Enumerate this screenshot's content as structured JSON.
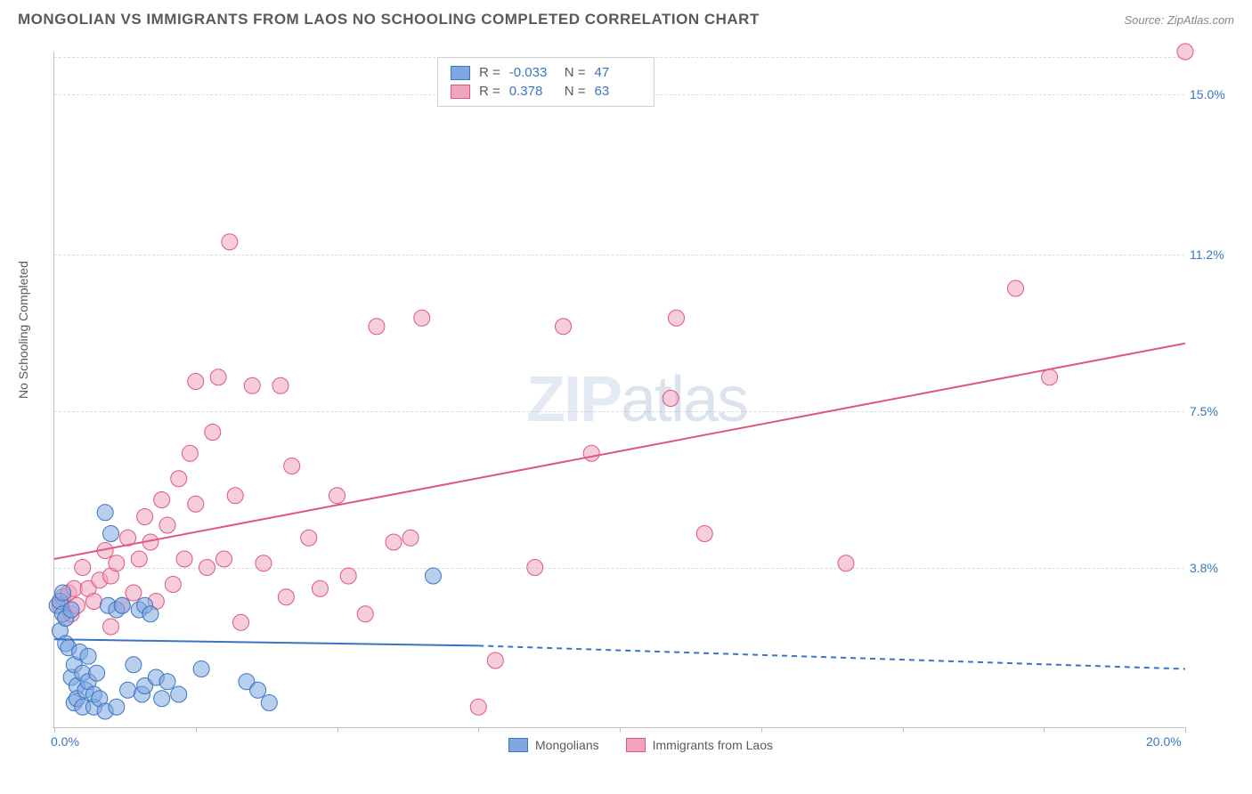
{
  "header": {
    "title": "MONGOLIAN VS IMMIGRANTS FROM LAOS NO SCHOOLING COMPLETED CORRELATION CHART",
    "source": "Source: ZipAtlas.com"
  },
  "watermark": {
    "bold": "ZIP",
    "thin": "atlas"
  },
  "chart": {
    "type": "scatter",
    "background_color": "#ffffff",
    "grid_color": "#dcdcdc",
    "axis_color": "#c0c0c0",
    "ylabel": "No Schooling Completed",
    "xlim": [
      0,
      20
    ],
    "ylim": [
      0,
      16
    ],
    "xticks": [
      0,
      2.5,
      5,
      7.5,
      10,
      12.5,
      15,
      17.5,
      20
    ],
    "xtick_labels": {
      "0": "0.0%",
      "20": "20.0%"
    },
    "yticks": [
      3.8,
      7.5,
      11.2,
      15.0
    ],
    "ytick_labels": [
      "3.8%",
      "7.5%",
      "11.2%",
      "15.0%"
    ],
    "marker_radius": 9,
    "marker_opacity": 0.55,
    "line_width": 2,
    "series": {
      "mongolians": {
        "label": "Mongolians",
        "fill_color": "#7fa8e0",
        "stroke_color": "#3b74c4",
        "r_value": -0.033,
        "n_value": 47,
        "regression": {
          "x1": 0,
          "y1": 2.1,
          "x2_solid": 7.5,
          "y2_solid": 1.95,
          "x2_dash": 20,
          "y2_dash": 1.4
        },
        "points": [
          [
            0.05,
            2.9
          ],
          [
            0.1,
            3.0
          ],
          [
            0.1,
            2.3
          ],
          [
            0.15,
            3.2
          ],
          [
            0.15,
            2.7
          ],
          [
            0.2,
            2.0
          ],
          [
            0.2,
            2.6
          ],
          [
            0.25,
            1.9
          ],
          [
            0.3,
            1.2
          ],
          [
            0.3,
            2.8
          ],
          [
            0.35,
            0.6
          ],
          [
            0.35,
            1.5
          ],
          [
            0.4,
            1.0
          ],
          [
            0.4,
            0.7
          ],
          [
            0.45,
            1.8
          ],
          [
            0.5,
            0.5
          ],
          [
            0.5,
            1.3
          ],
          [
            0.55,
            0.9
          ],
          [
            0.6,
            1.1
          ],
          [
            0.6,
            1.7
          ],
          [
            0.7,
            0.5
          ],
          [
            0.7,
            0.8
          ],
          [
            0.75,
            1.3
          ],
          [
            0.8,
            0.7
          ],
          [
            0.9,
            0.4
          ],
          [
            0.9,
            5.1
          ],
          [
            0.95,
            2.9
          ],
          [
            1.0,
            4.6
          ],
          [
            1.1,
            0.5
          ],
          [
            1.1,
            2.8
          ],
          [
            1.2,
            2.9
          ],
          [
            1.3,
            0.9
          ],
          [
            1.4,
            1.5
          ],
          [
            1.5,
            2.8
          ],
          [
            1.55,
            0.8
          ],
          [
            1.6,
            2.9
          ],
          [
            1.6,
            1.0
          ],
          [
            1.7,
            2.7
          ],
          [
            1.8,
            1.2
          ],
          [
            1.9,
            0.7
          ],
          [
            2.0,
            1.1
          ],
          [
            2.2,
            0.8
          ],
          [
            2.6,
            1.4
          ],
          [
            3.4,
            1.1
          ],
          [
            3.6,
            0.9
          ],
          [
            3.8,
            0.6
          ],
          [
            6.7,
            3.6
          ]
        ]
      },
      "laos": {
        "label": "Immigrants from Laos",
        "fill_color": "#f2a4bd",
        "stroke_color": "#e0567e",
        "r_value": 0.378,
        "n_value": 63,
        "regression": {
          "x1": 0,
          "y1": 4.0,
          "x2_solid": 20,
          "y2_solid": 9.1,
          "x2_dash": 20,
          "y2_dash": 9.1
        },
        "points": [
          [
            0.1,
            2.9
          ],
          [
            0.15,
            3.1
          ],
          [
            0.2,
            2.6
          ],
          [
            0.25,
            3.2
          ],
          [
            0.3,
            2.7
          ],
          [
            0.35,
            3.3
          ],
          [
            0.4,
            2.9
          ],
          [
            0.5,
            3.8
          ],
          [
            0.6,
            3.3
          ],
          [
            0.7,
            3.0
          ],
          [
            0.8,
            3.5
          ],
          [
            0.9,
            4.2
          ],
          [
            1.0,
            3.6
          ],
          [
            1.0,
            2.4
          ],
          [
            1.1,
            3.9
          ],
          [
            1.2,
            2.9
          ],
          [
            1.3,
            4.5
          ],
          [
            1.4,
            3.2
          ],
          [
            1.5,
            4.0
          ],
          [
            1.6,
            5.0
          ],
          [
            1.7,
            4.4
          ],
          [
            1.8,
            3.0
          ],
          [
            1.9,
            5.4
          ],
          [
            2.0,
            4.8
          ],
          [
            2.1,
            3.4
          ],
          [
            2.2,
            5.9
          ],
          [
            2.3,
            4.0
          ],
          [
            2.4,
            6.5
          ],
          [
            2.5,
            5.3
          ],
          [
            2.5,
            8.2
          ],
          [
            2.7,
            3.8
          ],
          [
            2.8,
            7.0
          ],
          [
            2.9,
            8.3
          ],
          [
            3.0,
            4.0
          ],
          [
            3.1,
            11.5
          ],
          [
            3.2,
            5.5
          ],
          [
            3.3,
            2.5
          ],
          [
            3.5,
            8.1
          ],
          [
            3.7,
            3.9
          ],
          [
            4.0,
            8.1
          ],
          [
            4.1,
            3.1
          ],
          [
            4.2,
            6.2
          ],
          [
            4.5,
            4.5
          ],
          [
            4.7,
            3.3
          ],
          [
            5.0,
            5.5
          ],
          [
            5.2,
            3.6
          ],
          [
            5.5,
            2.7
          ],
          [
            5.7,
            9.5
          ],
          [
            6.0,
            4.4
          ],
          [
            6.3,
            4.5
          ],
          [
            6.5,
            9.7
          ],
          [
            7.5,
            0.5
          ],
          [
            7.8,
            1.6
          ],
          [
            8.5,
            3.8
          ],
          [
            9.0,
            9.5
          ],
          [
            9.5,
            6.5
          ],
          [
            10.9,
            7.8
          ],
          [
            11.0,
            9.7
          ],
          [
            11.5,
            4.6
          ],
          [
            14.0,
            3.9
          ],
          [
            17.0,
            10.4
          ],
          [
            17.6,
            8.3
          ],
          [
            20.0,
            16.0
          ]
        ]
      }
    }
  },
  "legend_top": {
    "r_prefix": "R =",
    "n_prefix": "N ="
  }
}
